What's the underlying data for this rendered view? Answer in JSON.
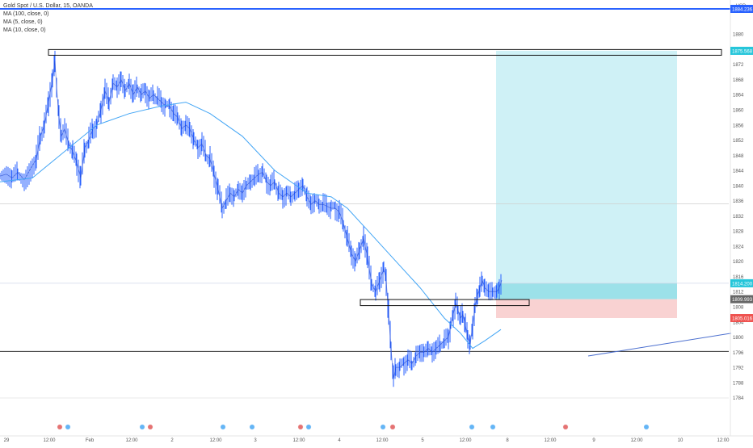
{
  "chart_data": {
    "type": "candlestick",
    "title": "Gold Spot / U.S. Dollar, 15, OANDA",
    "indicators": [
      "MA (100, close, 0)",
      "MA (5, close, 0)",
      "MA (10, close, 0)"
    ],
    "currency": "USD",
    "y_axis": {
      "ylim": [
        1782,
        1886
      ],
      "ticks": [
        1784,
        1788,
        1792,
        1796,
        1800,
        1804,
        1808,
        1812,
        1816,
        1820,
        1824,
        1828,
        1832,
        1836,
        1840,
        1844,
        1848,
        1852,
        1856,
        1860,
        1864,
        1868,
        1872,
        1876,
        1880
      ]
    },
    "x_axis": {
      "ticks": [
        "29",
        "12:00",
        "Feb",
        "12:00",
        "2",
        "12:00",
        "3",
        "12:00",
        "4",
        "12:00",
        "5",
        "12:00",
        "8",
        "12:00",
        "9",
        "12:00",
        "10",
        "12:00"
      ]
    },
    "close_path": [
      [
        0,
        1842.5
      ],
      [
        8,
        1843
      ],
      [
        15,
        1842
      ],
      [
        22,
        1843.5
      ],
      [
        30,
        1841.5
      ],
      [
        38,
        1844.5
      ],
      [
        45,
        1847
      ],
      [
        50,
        1853
      ],
      [
        55,
        1856
      ],
      [
        60,
        1862
      ],
      [
        65,
        1868
      ],
      [
        68,
        1873
      ],
      [
        70,
        1866
      ],
      [
        73,
        1858
      ],
      [
        76,
        1853
      ],
      [
        80,
        1855
      ],
      [
        85,
        1851
      ],
      [
        90,
        1849
      ],
      [
        95,
        1846
      ],
      [
        100,
        1842
      ],
      [
        105,
        1850
      ],
      [
        110,
        1852
      ],
      [
        115,
        1855
      ],
      [
        120,
        1856
      ],
      [
        125,
        1860
      ],
      [
        130,
        1865
      ],
      [
        135,
        1862
      ],
      [
        140,
        1867
      ],
      [
        145,
        1866
      ],
      [
        150,
        1868
      ],
      [
        155,
        1865
      ],
      [
        160,
        1867
      ],
      [
        165,
        1864
      ],
      [
        170,
        1866
      ],
      [
        175,
        1864
      ],
      [
        180,
        1865
      ],
      [
        185,
        1863
      ],
      [
        190,
        1864
      ],
      [
        195,
        1863
      ],
      [
        200,
        1862
      ],
      [
        205,
        1861
      ],
      [
        210,
        1861
      ],
      [
        215,
        1859
      ],
      [
        220,
        1858
      ],
      [
        225,
        1855
      ],
      [
        230,
        1856
      ],
      [
        235,
        1855
      ],
      [
        240,
        1852
      ],
      [
        245,
        1850
      ],
      [
        250,
        1851
      ],
      [
        255,
        1848
      ],
      [
        260,
        1847
      ],
      [
        265,
        1843
      ],
      [
        270,
        1839
      ],
      [
        275,
        1834
      ],
      [
        280,
        1836
      ],
      [
        285,
        1838
      ],
      [
        290,
        1837
      ],
      [
        295,
        1839
      ],
      [
        300,
        1838
      ],
      [
        305,
        1840
      ],
      [
        310,
        1841
      ],
      [
        315,
        1842
      ],
      [
        320,
        1843
      ],
      [
        325,
        1843.5
      ],
      [
        330,
        1841
      ],
      [
        335,
        1840
      ],
      [
        340,
        1841
      ],
      [
        345,
        1838
      ],
      [
        350,
        1837
      ],
      [
        355,
        1838
      ],
      [
        360,
        1837
      ],
      [
        365,
        1838
      ],
      [
        370,
        1839
      ],
      [
        375,
        1840
      ],
      [
        380,
        1837
      ],
      [
        385,
        1835
      ],
      [
        390,
        1836
      ],
      [
        395,
        1835
      ],
      [
        400,
        1835
      ],
      [
        405,
        1834.5
      ],
      [
        410,
        1834
      ],
      [
        415,
        1834
      ],
      [
        420,
        1833
      ],
      [
        425,
        1830
      ],
      [
        430,
        1826
      ],
      [
        435,
        1822
      ],
      [
        440,
        1820
      ],
      [
        445,
        1823
      ],
      [
        450,
        1826
      ],
      [
        455,
        1821
      ],
      [
        460,
        1814
      ],
      [
        465,
        1812
      ],
      [
        470,
        1815
      ],
      [
        475,
        1818
      ],
      [
        478,
        1815
      ],
      [
        481,
        1806
      ],
      [
        484,
        1797
      ],
      [
        487,
        1789
      ],
      [
        490,
        1792
      ],
      [
        495,
        1792
      ],
      [
        500,
        1793
      ],
      [
        505,
        1794
      ],
      [
        510,
        1793
      ],
      [
        515,
        1795
      ],
      [
        520,
        1796
      ],
      [
        525,
        1796
      ],
      [
        530,
        1797
      ],
      [
        535,
        1796
      ],
      [
        540,
        1797
      ],
      [
        545,
        1798
      ],
      [
        550,
        1799
      ],
      [
        555,
        1800
      ],
      [
        558,
        1803
      ],
      [
        561,
        1806
      ],
      [
        564,
        1809
      ],
      [
        567,
        1807
      ],
      [
        570,
        1805
      ],
      [
        573,
        1806
      ],
      [
        576,
        1803
      ],
      [
        579,
        1800
      ],
      [
        582,
        1798
      ],
      [
        585,
        1803
      ],
      [
        588,
        1808
      ],
      [
        591,
        1811
      ],
      [
        594,
        1813
      ],
      [
        597,
        1815
      ],
      [
        600,
        1813
      ],
      [
        605,
        1812
      ],
      [
        610,
        1812
      ],
      [
        615,
        1812
      ],
      [
        618,
        1813
      ],
      [
        621,
        1815
      ]
    ],
    "ma_100": [
      [
        0,
        1841
      ],
      [
        40,
        1842
      ],
      [
        80,
        1849
      ],
      [
        120,
        1856
      ],
      [
        160,
        1859
      ],
      [
        200,
        1861
      ],
      [
        230,
        1862
      ],
      [
        260,
        1859
      ],
      [
        300,
        1853
      ],
      [
        340,
        1844
      ],
      [
        380,
        1838
      ],
      [
        410,
        1837
      ],
      [
        430,
        1834
      ],
      [
        460,
        1827
      ],
      [
        490,
        1820
      ],
      [
        520,
        1813
      ],
      [
        550,
        1805
      ],
      [
        570,
        1801
      ],
      [
        585,
        1797
      ],
      [
        600,
        1799
      ],
      [
        620,
        1802
      ]
    ],
    "long_trendline": [
      [
        728,
        1795
      ],
      [
        905,
        1801
      ]
    ],
    "horizontal_levels": [
      1796.2,
      1835.2,
      1814.2
    ],
    "zones": [
      {
        "label": "top-range-box",
        "y_range": [
          1874.4,
          1875.9
        ],
        "x_range": [
          60,
          893
        ]
      },
      {
        "label": "support-box",
        "y_range": [
          1808.3,
          1809.9
        ],
        "x_range": [
          446,
          655
        ]
      }
    ],
    "position": {
      "type": "long",
      "entry": 1809.993,
      "target": 1875.568,
      "stop": 1805.016,
      "current": 1814.2
    },
    "price_labels": [
      {
        "text": "1884.236",
        "color": "#2962ff"
      },
      {
        "text": "1875.568",
        "color": "#26c6da"
      },
      {
        "text": "1814.200",
        "color": "#26c6da"
      },
      {
        "text": "1809.993",
        "color": "#666666"
      },
      {
        "text": "1805.016",
        "color": "#ef5350"
      }
    ],
    "event_markers_count": 14,
    "colors": {
      "candle": "#2962ff",
      "ma_100": "#42a5f5",
      "profit_zone": "#c7eef4",
      "loss_zone": "#f8cdcd",
      "top_line": "#2962ff"
    }
  }
}
